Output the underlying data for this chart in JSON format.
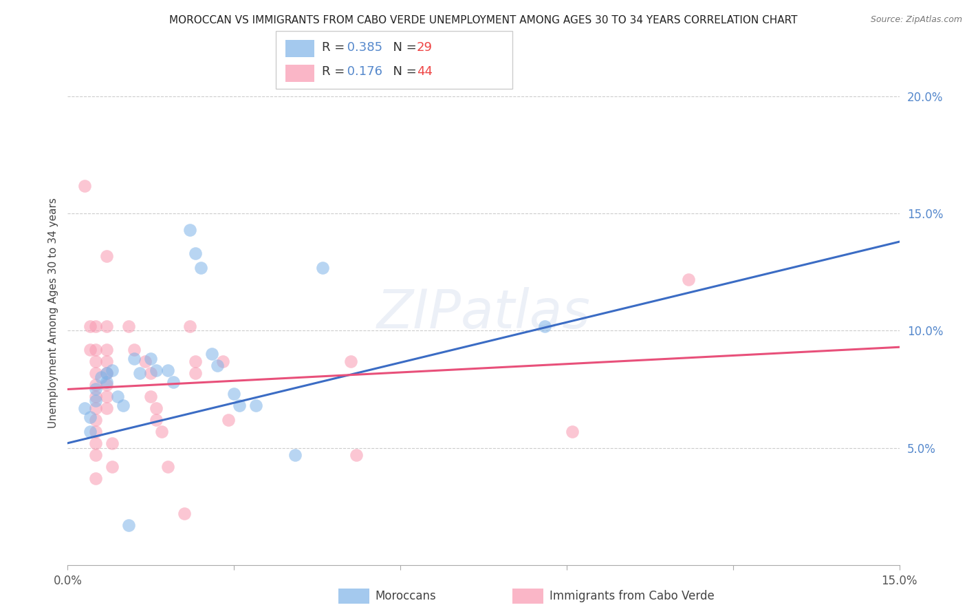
{
  "title": "MOROCCAN VS IMMIGRANTS FROM CABO VERDE UNEMPLOYMENT AMONG AGES 30 TO 34 YEARS CORRELATION CHART",
  "source": "Source: ZipAtlas.com",
  "ylabel": "Unemployment Among Ages 30 to 34 years",
  "xmin": 0.0,
  "xmax": 0.15,
  "ymin": 0.0,
  "ymax": 0.215,
  "y_ticks_right": [
    0.05,
    0.1,
    0.15,
    0.2
  ],
  "y_tick_labels_right": [
    "5.0%",
    "10.0%",
    "15.0%",
    "20.0%"
  ],
  "legend_moroccan_R": "0.385",
  "legend_moroccan_N": "29",
  "legend_caboverde_R": "0.176",
  "legend_caboverde_N": "44",
  "moroccan_color": "#7EB3E8",
  "caboverde_color": "#F898B0",
  "trendline_moroccan_color": "#3B6CC4",
  "trendline_caboverde_color": "#E8507A",
  "watermark": "ZIPatlas",
  "moroccan_scatter": [
    [
      0.003,
      0.067
    ],
    [
      0.004,
      0.063
    ],
    [
      0.004,
      0.057
    ],
    [
      0.005,
      0.075
    ],
    [
      0.005,
      0.07
    ],
    [
      0.006,
      0.08
    ],
    [
      0.007,
      0.082
    ],
    [
      0.007,
      0.078
    ],
    [
      0.008,
      0.083
    ],
    [
      0.009,
      0.072
    ],
    [
      0.01,
      0.068
    ],
    [
      0.012,
      0.088
    ],
    [
      0.013,
      0.082
    ],
    [
      0.015,
      0.088
    ],
    [
      0.016,
      0.083
    ],
    [
      0.018,
      0.083
    ],
    [
      0.019,
      0.078
    ],
    [
      0.022,
      0.143
    ],
    [
      0.023,
      0.133
    ],
    [
      0.024,
      0.127
    ],
    [
      0.026,
      0.09
    ],
    [
      0.027,
      0.085
    ],
    [
      0.03,
      0.073
    ],
    [
      0.031,
      0.068
    ],
    [
      0.034,
      0.068
    ],
    [
      0.046,
      0.127
    ],
    [
      0.086,
      0.102
    ],
    [
      0.011,
      0.017
    ],
    [
      0.041,
      0.047
    ]
  ],
  "caboverde_scatter": [
    [
      0.003,
      0.162
    ],
    [
      0.004,
      0.102
    ],
    [
      0.004,
      0.092
    ],
    [
      0.005,
      0.102
    ],
    [
      0.005,
      0.092
    ],
    [
      0.005,
      0.087
    ],
    [
      0.005,
      0.082
    ],
    [
      0.005,
      0.077
    ],
    [
      0.005,
      0.072
    ],
    [
      0.005,
      0.067
    ],
    [
      0.005,
      0.062
    ],
    [
      0.005,
      0.057
    ],
    [
      0.005,
      0.052
    ],
    [
      0.005,
      0.047
    ],
    [
      0.005,
      0.037
    ],
    [
      0.007,
      0.132
    ],
    [
      0.007,
      0.102
    ],
    [
      0.007,
      0.092
    ],
    [
      0.007,
      0.087
    ],
    [
      0.007,
      0.082
    ],
    [
      0.007,
      0.077
    ],
    [
      0.007,
      0.072
    ],
    [
      0.007,
      0.067
    ],
    [
      0.008,
      0.052
    ],
    [
      0.008,
      0.042
    ],
    [
      0.011,
      0.102
    ],
    [
      0.012,
      0.092
    ],
    [
      0.014,
      0.087
    ],
    [
      0.015,
      0.082
    ],
    [
      0.015,
      0.072
    ],
    [
      0.016,
      0.067
    ],
    [
      0.016,
      0.062
    ],
    [
      0.017,
      0.057
    ],
    [
      0.018,
      0.042
    ],
    [
      0.022,
      0.102
    ],
    [
      0.023,
      0.087
    ],
    [
      0.023,
      0.082
    ],
    [
      0.028,
      0.087
    ],
    [
      0.029,
      0.062
    ],
    [
      0.051,
      0.087
    ],
    [
      0.052,
      0.047
    ],
    [
      0.091,
      0.057
    ],
    [
      0.112,
      0.122
    ],
    [
      0.021,
      0.022
    ]
  ],
  "moroccan_trend_x": [
    0.0,
    0.15
  ],
  "moroccan_trend_y": [
    0.052,
    0.138
  ],
  "caboverde_trend_x": [
    0.0,
    0.15
  ],
  "caboverde_trend_y": [
    0.075,
    0.093
  ]
}
